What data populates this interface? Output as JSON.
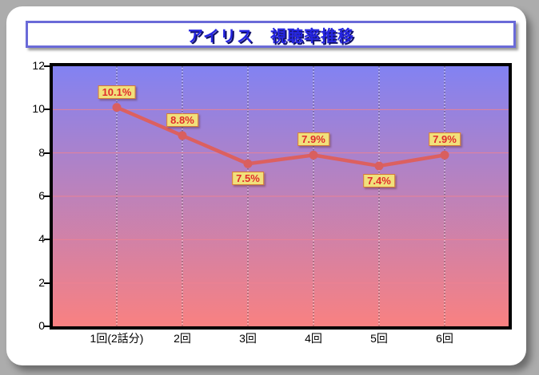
{
  "window": {
    "background_color": "#acacac",
    "panel_color": "#ffffff"
  },
  "title": {
    "text": "アイリス　視聴率推移",
    "text_color": "#2424e0",
    "shadow_color": "#12126a",
    "border_color": "#6a6ad8"
  },
  "chart_data": {
    "type": "line",
    "title": "アイリス　視聴率推移",
    "categories": [
      "1回(2話分)",
      "2回",
      "3回",
      "4回",
      "5回",
      "6回"
    ],
    "series": [
      {
        "name": "視聴率",
        "values": [
          10.1,
          8.8,
          7.5,
          7.9,
          7.4,
          7.9
        ]
      }
    ],
    "point_labels": [
      "10.1%",
      "8.8%",
      "7.5%",
      "7.9%",
      "7.4%",
      "7.9%"
    ],
    "point_label_positions": [
      "above",
      "above",
      "below",
      "above",
      "below",
      "above"
    ],
    "xlabel": "",
    "ylabel": "",
    "ylim": [
      0,
      12
    ],
    "yticks": [
      0,
      2,
      4,
      6,
      8,
      10,
      12
    ],
    "legend": "none",
    "grid": {
      "horizontal": "solid",
      "vertical": "dotted"
    },
    "style": {
      "line_color": "#dc6060",
      "marker": "circle",
      "marker_color": "#d95f5f",
      "plot_bg_top": "#8282f2",
      "plot_bg_bottom": "#f98181",
      "hgrid_color": "#ee8292",
      "vgrid_dark_color": "#444444",
      "vgrid_light_color": "#ffffff",
      "plot_border_color": "#000000",
      "label_bg": "#f1e07b",
      "label_border": "#d4763a",
      "label_text_color": "#e02c2c",
      "axis_text_color": "#000000"
    }
  }
}
